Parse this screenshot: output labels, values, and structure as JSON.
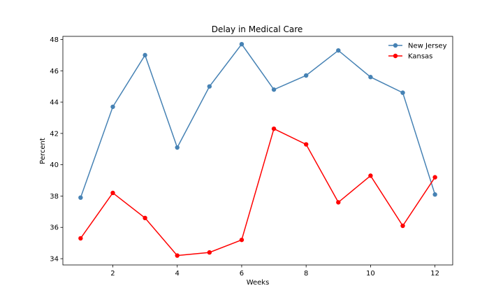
{
  "chart_data": {
    "type": "line",
    "title": "Delay in Medical Care",
    "xlabel": "Weeks",
    "ylabel": "Percent",
    "x": [
      1,
      2,
      3,
      4,
      5,
      6,
      7,
      8,
      9,
      10,
      11,
      12
    ],
    "xlim": [
      0.45,
      12.55
    ],
    "ylim": [
      33.6,
      48.2
    ],
    "xticks": [
      2,
      4,
      6,
      8,
      10,
      12
    ],
    "yticks": [
      34,
      36,
      38,
      40,
      42,
      44,
      46,
      48
    ],
    "grid": false,
    "legend": "top-right",
    "series": [
      {
        "name": "New Jersey",
        "color": "#4682b4",
        "values": [
          37.9,
          43.7,
          47.0,
          41.1,
          45.0,
          47.7,
          44.8,
          45.7,
          47.3,
          45.6,
          44.6,
          38.1
        ]
      },
      {
        "name": "Kansas",
        "color": "#ff0000",
        "values": [
          35.3,
          38.2,
          36.6,
          34.2,
          34.4,
          35.2,
          42.3,
          41.3,
          37.6,
          39.3,
          36.1,
          39.2
        ]
      }
    ]
  }
}
